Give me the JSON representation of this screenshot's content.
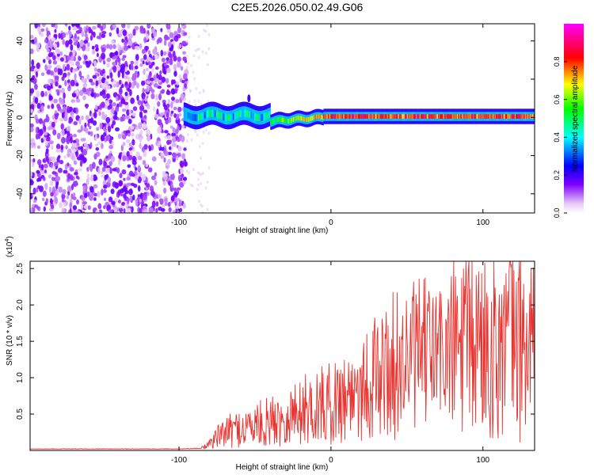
{
  "figure_title": "C2E5.2026.050.02.49.G06",
  "chart_data": [
    {
      "type": "heatmap",
      "xlabel": "Height of straight line (km)",
      "ylabel": "Frequency (Hz)",
      "xlim": [
        -198,
        134
      ],
      "ylim": [
        -50,
        49
      ],
      "xticks": [
        -100,
        0,
        100
      ],
      "yticks": [
        -40,
        -20,
        0,
        20,
        40
      ],
      "colorbar": {
        "label": "Normalized spectral amplitude",
        "range": [
          0,
          1
        ],
        "ticks": [
          "0.0",
          "0.2",
          "0.4",
          "0.6",
          "0.8"
        ]
      },
      "description_points": {
        "noise_region_x_end": -95,
        "ridge_frequency_hz": 0.5,
        "ridge_onset_x": -97,
        "ridge_max_amplitude_from_x": -5,
        "spike_near": {
          "x": -54,
          "freq": 10
        }
      }
    },
    {
      "type": "line",
      "xlabel": "Height of straight line (km)",
      "ylabel": "SNR (10 * v/v)",
      "y_multiplier_label": "(x10",
      "y_multiplier_exp": "4",
      "y_multiplier_close": ")",
      "xlim": [
        -198,
        134
      ],
      "ylim": [
        0,
        2.6
      ],
      "xticks": [
        -100,
        0,
        100
      ],
      "yticks": [
        0.5,
        1.0,
        1.5,
        2.0,
        2.5
      ],
      "ytick_labels": [
        "0.5",
        "1.0",
        "1.5",
        "2.0",
        "2.5"
      ],
      "series_color": "#e8332f",
      "series": [
        {
          "name": "SNR",
          "x": [
            -198,
            -150,
            -100,
            -85,
            -80,
            -70,
            -60,
            -50,
            -40,
            -30,
            -20,
            -10,
            0,
            10,
            20,
            30,
            40,
            50,
            60,
            70,
            80,
            90,
            100,
            110,
            120,
            134
          ],
          "y": [
            0.02,
            0.02,
            0.02,
            0.03,
            0.1,
            0.25,
            0.3,
            0.35,
            0.4,
            0.45,
            0.55,
            0.6,
            0.65,
            0.75,
            0.9,
            1.0,
            1.15,
            1.25,
            1.35,
            1.35,
            1.4,
            1.45,
            1.5,
            1.45,
            1.5,
            1.4
          ]
        }
      ]
    }
  ]
}
